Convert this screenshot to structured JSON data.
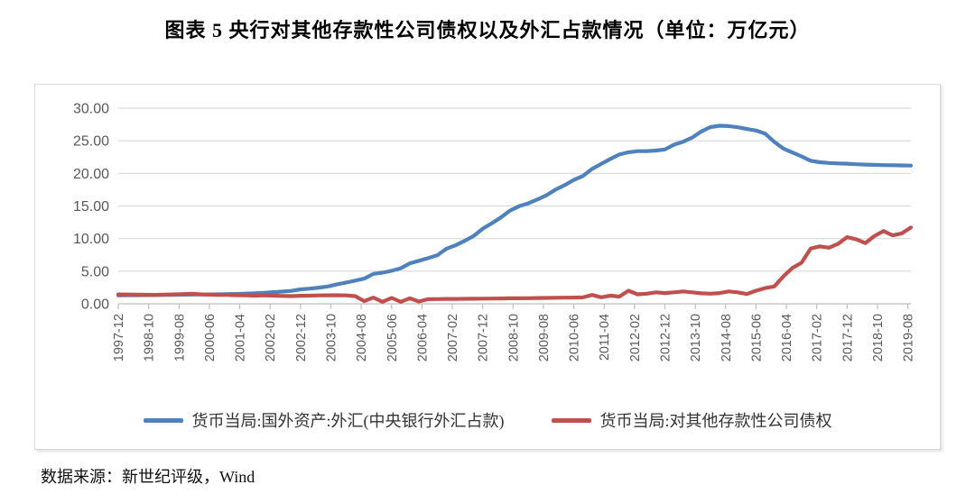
{
  "title": "图表 5  央行对其他存款性公司债权以及外汇占款情况（单位：万亿元）",
  "source_note": "数据来源：新世纪评级，Wind",
  "colors": {
    "fx_line": "#4f81bd",
    "claims_line": "#c0504d",
    "gridline": "#d9d9d9",
    "axis": "#bfbfbf",
    "tick_text": "#595959",
    "frame_border": "#d9d9d9"
  },
  "chart_data": {
    "type": "line",
    "title": "央行对其他存款性公司债权以及外汇占款情况",
    "unit": "万亿元",
    "ylim": [
      0,
      30
    ],
    "y_ticks": [
      "0.00",
      "5.00",
      "10.00",
      "15.00",
      "20.00",
      "25.00",
      "30.00"
    ],
    "grid": "horizontal",
    "legend_position": "bottom",
    "x_tick_labels": [
      "1997-12",
      "1998-10",
      "1999-08",
      "2000-06",
      "2001-04",
      "2002-02",
      "2002-12",
      "2003-10",
      "2004-08",
      "2005-06",
      "2006-04",
      "2007-02",
      "2007-12",
      "2008-10",
      "2009-08",
      "2010-06",
      "2011-04",
      "2012-02",
      "2012-12",
      "2013-10",
      "2014-08",
      "2015-06",
      "2016-04",
      "2017-02",
      "2017-12",
      "2018-10",
      "2019-08"
    ],
    "x": [
      "1997-12",
      "1998-03",
      "1998-06",
      "1998-09",
      "1998-12",
      "1999-03",
      "1999-06",
      "1999-09",
      "1999-12",
      "2000-03",
      "2000-06",
      "2000-09",
      "2000-12",
      "2001-03",
      "2001-06",
      "2001-09",
      "2001-12",
      "2002-03",
      "2002-06",
      "2002-09",
      "2002-12",
      "2003-03",
      "2003-06",
      "2003-09",
      "2003-12",
      "2004-03",
      "2004-06",
      "2004-09",
      "2004-12",
      "2005-03",
      "2005-06",
      "2005-09",
      "2005-12",
      "2006-03",
      "2006-06",
      "2006-09",
      "2006-12",
      "2007-03",
      "2007-06",
      "2007-09",
      "2007-12",
      "2008-03",
      "2008-06",
      "2008-09",
      "2008-12",
      "2009-03",
      "2009-06",
      "2009-09",
      "2009-12",
      "2010-03",
      "2010-06",
      "2010-09",
      "2010-12",
      "2011-03",
      "2011-06",
      "2011-09",
      "2011-12",
      "2012-03",
      "2012-06",
      "2012-09",
      "2012-12",
      "2013-03",
      "2013-06",
      "2013-09",
      "2013-12",
      "2014-03",
      "2014-06",
      "2014-09",
      "2014-12",
      "2015-03",
      "2015-06",
      "2015-09",
      "2015-12",
      "2016-03",
      "2016-06",
      "2016-09",
      "2016-12",
      "2017-03",
      "2017-06",
      "2017-09",
      "2017-12",
      "2018-03",
      "2018-06",
      "2018-09",
      "2018-12",
      "2019-03",
      "2019-06",
      "2019-09"
    ],
    "series": [
      {
        "name": "货币当局:国外资产:外汇(中央银行外汇占款)",
        "color": "#4f81bd",
        "values": [
          1.29,
          1.31,
          1.32,
          1.33,
          1.34,
          1.36,
          1.38,
          1.39,
          1.41,
          1.43,
          1.44,
          1.45,
          1.48,
          1.51,
          1.56,
          1.62,
          1.69,
          1.78,
          1.86,
          1.98,
          2.21,
          2.32,
          2.48,
          2.66,
          2.98,
          3.25,
          3.55,
          3.86,
          4.59,
          4.77,
          5.06,
          5.45,
          6.21,
          6.59,
          6.99,
          7.43,
          8.42,
          8.96,
          9.63,
          10.39,
          11.52,
          12.35,
          13.25,
          14.3,
          14.96,
          15.4,
          16.0,
          16.65,
          17.51,
          18.2,
          19.0,
          19.6,
          20.68,
          21.45,
          22.2,
          22.9,
          23.24,
          23.4,
          23.4,
          23.5,
          23.67,
          24.4,
          24.85,
          25.5,
          26.43,
          27.1,
          27.3,
          27.25,
          27.07,
          26.8,
          26.57,
          26.1,
          24.85,
          23.8,
          23.2,
          22.6,
          21.94,
          21.7,
          21.6,
          21.52,
          21.48,
          21.4,
          21.35,
          21.3,
          21.26,
          21.25,
          21.22,
          21.2
        ]
      },
      {
        "name": "货币当局:对其他存款性公司债权",
        "color": "#c0504d",
        "values": [
          1.44,
          1.42,
          1.4,
          1.38,
          1.37,
          1.4,
          1.44,
          1.48,
          1.54,
          1.45,
          1.4,
          1.37,
          1.35,
          1.32,
          1.28,
          1.25,
          1.28,
          1.25,
          1.2,
          1.18,
          1.23,
          1.25,
          1.28,
          1.3,
          1.32,
          1.28,
          1.18,
          0.4,
          0.95,
          0.3,
          0.9,
          0.3,
          0.85,
          0.35,
          0.7,
          0.72,
          0.75,
          0.74,
          0.76,
          0.78,
          0.79,
          0.8,
          0.82,
          0.84,
          0.84,
          0.86,
          0.88,
          0.9,
          0.92,
          0.94,
          0.96,
          0.98,
          1.35,
          1.0,
          1.25,
          1.1,
          2.0,
          1.45,
          1.55,
          1.75,
          1.65,
          1.75,
          1.9,
          1.75,
          1.6,
          1.55,
          1.65,
          1.9,
          1.75,
          1.5,
          2.0,
          2.4,
          2.66,
          4.2,
          5.5,
          6.3,
          8.47,
          8.8,
          8.6,
          9.2,
          10.22,
          9.9,
          9.3,
          10.4,
          11.15,
          10.5,
          10.8,
          11.7
        ]
      }
    ]
  }
}
